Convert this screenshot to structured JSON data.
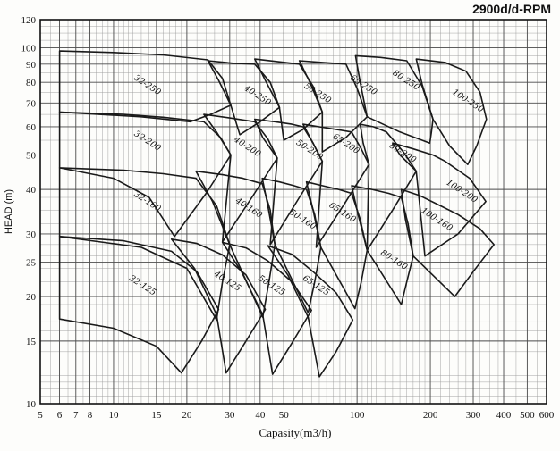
{
  "title": "2900d/d-RPM",
  "chart_data": {
    "type": "area",
    "subtype": "pump-selection-envelope-chart",
    "title": "2900d/d-RPM",
    "xlabel": "Capasity(m3/h)",
    "ylabel": "HEAD (m)",
    "x_scale": "log",
    "y_scale": "log",
    "xlim": [
      5,
      600
    ],
    "ylim": [
      10,
      120
    ],
    "grid": "on",
    "x_ticks_labeled": [
      5,
      6,
      7,
      8,
      10,
      15,
      20,
      30,
      40,
      50,
      100,
      200,
      300,
      400,
      500,
      600
    ],
    "y_ticks_labeled": [
      10,
      15,
      20,
      25,
      30,
      40,
      50,
      60,
      70,
      80,
      90,
      100,
      120
    ],
    "minor_pattern": [
      1,
      1.05,
      1.1,
      1.15,
      1.2,
      1.3,
      1.4,
      1.5,
      1.6,
      1.7,
      1.8,
      1.9,
      2,
      2.2,
      2.4,
      2.6,
      2.8,
      3,
      3.2,
      3.5,
      3.8,
      4,
      4.5,
      5,
      5.5,
      6,
      6.5,
      7,
      7.5,
      8,
      8.5,
      9,
      9.5
    ],
    "colors": {
      "curve": "#1a1a1a",
      "grid_major": "#4d4d4d",
      "grid_minor": "#9a9a9a",
      "frame": "#111111",
      "background": "#fdfdfb"
    },
    "label_angle_deg": 33,
    "envelopes": [
      {
        "label": "32-125",
        "label_pos": [
          13,
          21.2
        ],
        "points": [
          [
            6,
            29.5
          ],
          [
            11,
            28.7
          ],
          [
            17.3,
            26.8
          ],
          [
            22,
            23.5
          ],
          [
            27,
            18.4
          ],
          [
            23,
            15
          ],
          [
            19,
            12.2
          ],
          [
            15,
            14.5
          ],
          [
            10,
            16.3
          ],
          [
            6,
            17.3
          ]
        ]
      },
      {
        "label": "40-125",
        "label_pos": [
          29,
          21.8
        ],
        "points": [
          [
            17.3,
            29
          ],
          [
            22,
            28.2
          ],
          [
            28,
            26.2
          ],
          [
            35,
            23
          ],
          [
            42,
            18.4
          ],
          [
            35,
            15
          ],
          [
            29,
            12.2
          ],
          [
            26.5,
            17.8
          ],
          [
            21.5,
            24
          ]
        ]
      },
      {
        "label": "50-125",
        "label_pos": [
          44,
          21.2
        ],
        "points": [
          [
            28,
            28.4
          ],
          [
            35,
            27.4
          ],
          [
            43,
            25.2
          ],
          [
            54,
            22
          ],
          [
            65,
            18.3
          ],
          [
            54,
            14.8
          ],
          [
            45,
            12.1
          ],
          [
            41,
            17.8
          ],
          [
            33.5,
            23.5
          ]
        ]
      },
      {
        "label": "65-125",
        "label_pos": [
          67,
          21.2
        ],
        "points": [
          [
            43,
            27.8
          ],
          [
            54,
            26.3
          ],
          [
            66,
            23.5
          ],
          [
            82,
            20.5
          ],
          [
            96,
            17.2
          ],
          [
            82,
            14
          ],
          [
            70,
            11.9
          ],
          [
            63,
            17.5
          ],
          [
            52,
            23
          ]
        ]
      },
      {
        "label": "32-160",
        "label_pos": [
          13.6,
          36.5
        ],
        "points": [
          [
            6,
            46
          ],
          [
            11,
            45.3
          ],
          [
            16,
            44.3
          ],
          [
            21.8,
            43
          ],
          [
            26.5,
            36
          ],
          [
            30,
            28
          ],
          [
            28,
            22
          ],
          [
            26.5,
            17.2
          ],
          [
            20,
            24
          ],
          [
            13,
            27.5
          ],
          [
            6,
            29.5
          ]
        ]
      },
      {
        "label": "40-160",
        "label_pos": [
          35.5,
          35
        ],
        "points": [
          [
            21.8,
            45
          ],
          [
            28,
            44
          ],
          [
            34,
            43
          ],
          [
            40.8,
            41.5
          ],
          [
            44,
            35
          ],
          [
            46,
            28
          ],
          [
            43.5,
            22
          ],
          [
            41,
            17.5
          ],
          [
            30,
            28
          ],
          [
            25.5,
            37
          ]
        ]
      },
      {
        "label": "50-160",
        "label_pos": [
          59,
          32.5
        ],
        "points": [
          [
            40.8,
            43
          ],
          [
            48,
            42
          ],
          [
            55,
            41
          ],
          [
            62,
            40
          ],
          [
            67,
            34
          ],
          [
            71,
            27.5
          ],
          [
            67,
            22
          ],
          [
            63,
            18
          ],
          [
            46,
            28
          ],
          [
            43,
            36
          ]
        ]
      },
      {
        "label": "65-160",
        "label_pos": [
          86,
          34
        ],
        "points": [
          [
            62,
            42
          ],
          [
            72,
            41
          ],
          [
            84,
            40
          ],
          [
            95,
            39
          ],
          [
            103,
            33
          ],
          [
            110,
            27
          ],
          [
            104,
            22
          ],
          [
            98,
            18.5
          ],
          [
            71,
            27.5
          ],
          [
            66,
            35
          ]
        ]
      },
      {
        "label": "80-160",
        "label_pos": [
          140,
          25
        ],
        "points": [
          [
            95,
            41
          ],
          [
            115,
            40
          ],
          [
            135,
            39
          ],
          [
            152,
            38
          ],
          [
            162,
            32
          ],
          [
            170,
            26
          ],
          [
            160,
            22
          ],
          [
            152,
            19
          ],
          [
            110,
            27
          ],
          [
            101,
            34
          ]
        ]
      },
      {
        "label": "100-160",
        "label_pos": [
          210,
          32.5
        ],
        "points": [
          [
            152,
            40
          ],
          [
            180,
            38.5
          ],
          [
            220,
            36
          ],
          [
            260,
            34
          ],
          [
            320,
            31
          ],
          [
            365,
            28
          ],
          [
            300,
            23.5
          ],
          [
            252,
            20
          ],
          [
            170,
            26
          ],
          [
            158,
            33
          ]
        ]
      },
      {
        "label": "32-200",
        "label_pos": [
          13.6,
          54
        ],
        "points": [
          [
            6,
            66
          ],
          [
            11,
            65
          ],
          [
            16,
            63.8
          ],
          [
            23.5,
            62
          ],
          [
            27.5,
            56
          ],
          [
            30.3,
            50
          ],
          [
            24,
            39
          ],
          [
            17.8,
            29.5
          ],
          [
            14,
            38
          ],
          [
            10,
            43
          ],
          [
            6,
            46
          ]
        ]
      },
      {
        "label": "40-200",
        "label_pos": [
          35,
          52
        ],
        "points": [
          [
            23.5,
            65
          ],
          [
            30,
            63.5
          ],
          [
            38,
            62
          ],
          [
            43,
            55.5
          ],
          [
            47,
            49
          ],
          [
            37,
            38
          ],
          [
            28,
            28.5
          ],
          [
            30.3,
            50
          ],
          [
            26.5,
            58
          ]
        ]
      },
      {
        "label": "50-200",
        "label_pos": [
          63,
          51
        ],
        "points": [
          [
            38,
            63
          ],
          [
            46,
            62
          ],
          [
            54,
            61
          ],
          [
            60,
            60
          ],
          [
            66,
            54
          ],
          [
            72,
            48
          ],
          [
            58,
            38
          ],
          [
            44,
            28
          ],
          [
            47,
            49
          ],
          [
            41,
            56
          ]
        ]
      },
      {
        "label": "65-200",
        "label_pos": [
          89,
          53
        ],
        "points": [
          [
            60,
            61
          ],
          [
            70,
            60
          ],
          [
            82,
            59
          ],
          [
            95,
            58
          ],
          [
            104,
            52
          ],
          [
            112,
            47
          ],
          [
            90,
            37
          ],
          [
            68,
            27.5
          ],
          [
            72,
            48
          ],
          [
            65,
            55
          ]
        ]
      },
      {
        "label": "80-200",
        "label_pos": [
          152,
          50
        ],
        "points": [
          [
            103,
            61
          ],
          [
            117,
            60
          ],
          [
            132,
            58
          ],
          [
            155,
            51
          ],
          [
            175,
            45
          ],
          [
            140,
            35
          ],
          [
            110,
            27
          ],
          [
            112,
            47
          ],
          [
            106,
            54
          ]
        ]
      },
      {
        "label": "100-200",
        "label_pos": [
          266,
          39
        ],
        "points": [
          [
            140,
            54
          ],
          [
            170,
            52
          ],
          [
            205,
            50
          ],
          [
            230,
            48
          ],
          [
            290,
            43
          ],
          [
            338,
            37
          ],
          [
            260,
            30
          ],
          [
            190,
            26
          ],
          [
            175,
            45
          ],
          [
            150,
            50
          ]
        ]
      },
      {
        "label": "32-250",
        "label_pos": [
          13.6,
          77.5
        ],
        "points": [
          [
            6,
            98
          ],
          [
            10,
            97
          ],
          [
            16,
            95.5
          ],
          [
            24.4,
            92.5
          ],
          [
            28,
            82
          ],
          [
            30.3,
            69
          ],
          [
            25,
            65
          ],
          [
            20.7,
            62
          ],
          [
            13,
            64
          ],
          [
            6,
            66
          ]
        ]
      },
      {
        "label": "40-250",
        "label_pos": [
          38.5,
          72.5
        ],
        "points": [
          [
            24.4,
            92
          ],
          [
            31,
            90.5
          ],
          [
            38,
            90
          ],
          [
            44,
            80
          ],
          [
            48,
            68
          ],
          [
            40,
            62
          ],
          [
            33,
            57
          ],
          [
            30.3,
            69
          ],
          [
            27,
            81
          ]
        ]
      },
      {
        "label": "50-250",
        "label_pos": [
          68,
          73.5
        ],
        "points": [
          [
            38,
            93
          ],
          [
            47,
            91.5
          ],
          [
            58,
            90
          ],
          [
            66,
            78
          ],
          [
            72,
            66
          ],
          [
            60,
            59
          ],
          [
            50,
            55
          ],
          [
            48,
            68
          ],
          [
            42,
            81
          ]
        ]
      },
      {
        "label": "65-250",
        "label_pos": [
          105,
          77.5
        ],
        "points": [
          [
            58,
            92
          ],
          [
            72,
            91
          ],
          [
            90,
            90
          ],
          [
            100,
            77
          ],
          [
            110,
            64
          ],
          [
            90,
            56
          ],
          [
            72,
            51
          ],
          [
            72,
            66
          ],
          [
            64,
            80
          ]
        ]
      },
      {
        "label": "80-250",
        "label_pos": [
          157,
          80
        ],
        "points": [
          [
            98.5,
            95
          ],
          [
            125,
            94
          ],
          [
            160,
            92
          ],
          [
            185,
            78
          ],
          [
            205,
            63
          ],
          [
            202,
            58
          ],
          [
            199,
            54
          ],
          [
            150,
            58
          ],
          [
            110,
            64
          ],
          [
            103,
            80
          ]
        ]
      },
      {
        "label": "100-250",
        "label_pos": [
          282,
          70
        ],
        "points": [
          [
            175,
            93
          ],
          [
            230,
            91
          ],
          [
            280,
            86
          ],
          [
            320,
            75
          ],
          [
            340,
            63
          ],
          [
            310,
            53
          ],
          [
            285,
            47
          ],
          [
            240,
            53
          ],
          [
            205,
            63
          ],
          [
            185,
            79
          ]
        ]
      }
    ]
  }
}
